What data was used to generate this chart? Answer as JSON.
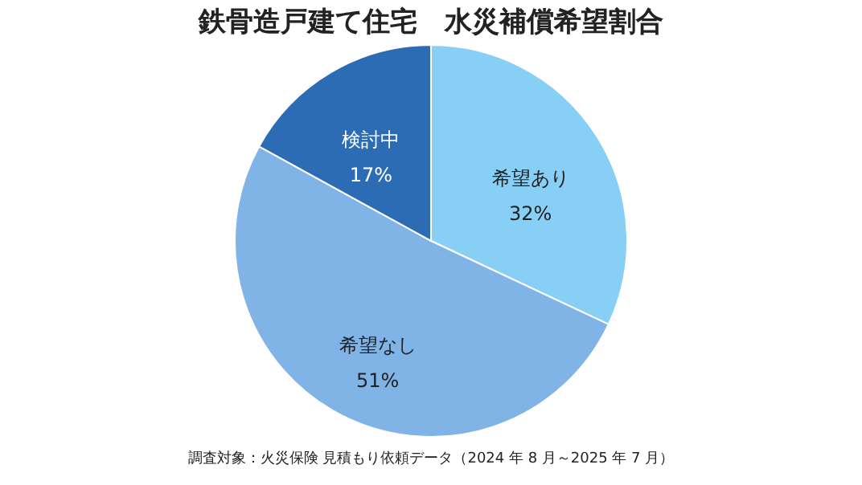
{
  "chart_data": {
    "type": "pie",
    "title": "鉄骨造戸建て住宅　水災補償希望割合",
    "categories": [
      "希望あり",
      "希望なし",
      "検討中"
    ],
    "values": [
      32,
      51,
      17
    ],
    "value_labels": [
      "32%",
      "51%",
      "17%"
    ],
    "colors": [
      "#87cff5",
      "#80b3e6",
      "#2b6cb5"
    ],
    "annotations": [
      "調査対象：火災保険 見積もり依頼データ（2024 年 8 月～2025 年 7 月）"
    ]
  }
}
